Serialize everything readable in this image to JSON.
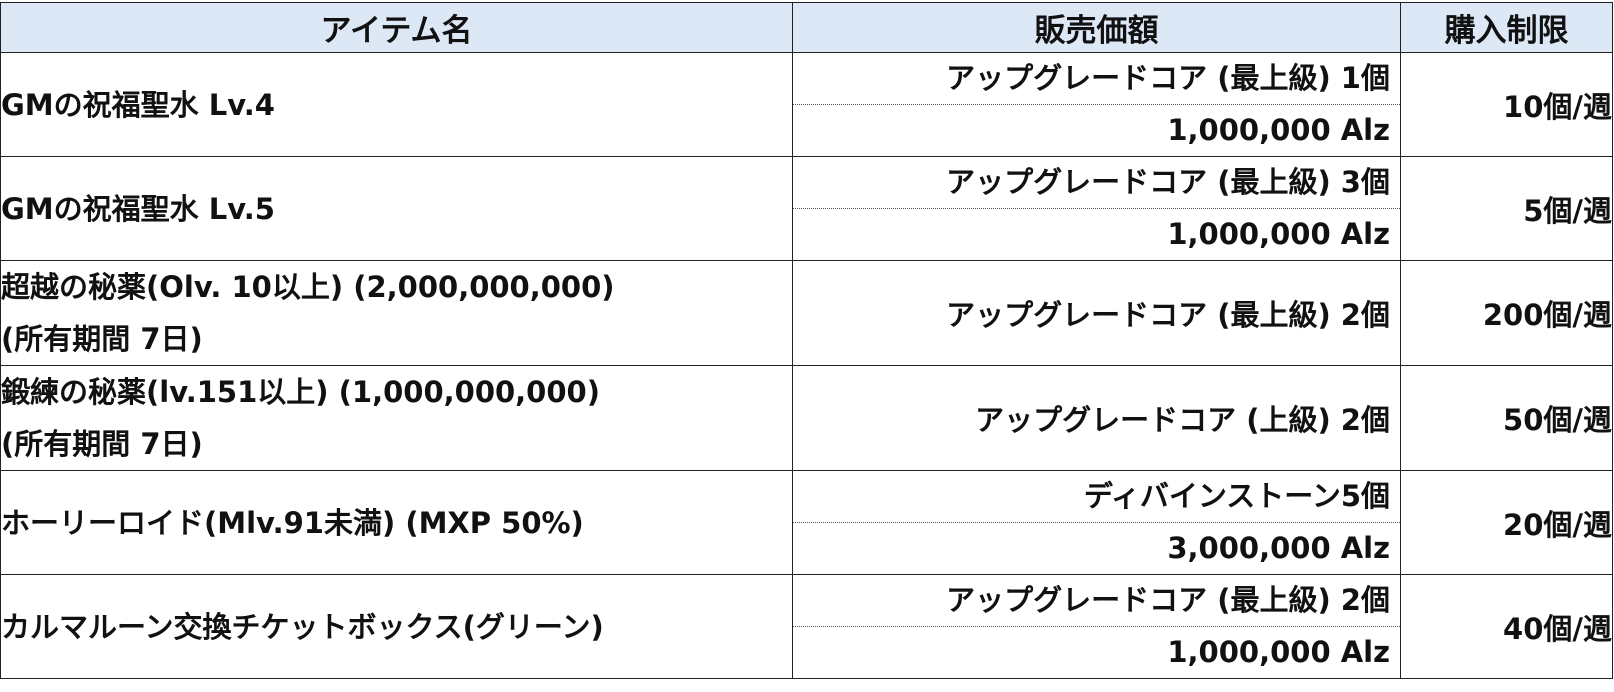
{
  "header": {
    "item_name": "アイテム名",
    "price": "販売価額",
    "limit": "購入制限"
  },
  "rows": [
    {
      "name_line1": "GMの祝福聖水 Lv.4",
      "name_line2": "",
      "price_lines": [
        "アップグレードコア (最上級) 1個",
        "1,000,000 Alz"
      ],
      "limit": "10個/週"
    },
    {
      "name_line1": "GMの祝福聖水 Lv.5",
      "name_line2": "",
      "price_lines": [
        "アップグレードコア (最上級) 3個",
        "1,000,000 Alz"
      ],
      "limit": "5個/週"
    },
    {
      "name_line1": "超越の秘薬(Olv. 10以上) (2,000,000,000)",
      "name_line2": "(所有期間 7日)",
      "price_lines": [
        "アップグレードコア (最上級) 2個"
      ],
      "limit": "200個/週"
    },
    {
      "name_line1": "鍛練の秘薬(lv.151以上) (1,000,000,000)",
      "name_line2": "(所有期間 7日)",
      "price_lines": [
        "アップグレードコア (上級) 2個"
      ],
      "limit": "50個/週"
    },
    {
      "name_line1": "ホーリーロイド(Mlv.91未満) (MXP 50%)",
      "name_line2": "",
      "price_lines": [
        "ディバインストーン5個",
        "3,000,000 Alz"
      ],
      "limit": "20個/週"
    },
    {
      "name_line1": "カルマルーン交換チケットボックス(グリーン)",
      "name_line2": "",
      "price_lines": [
        "アップグレードコア (最上級) 2個",
        "1,000,000 Alz"
      ],
      "limit": "40個/週"
    }
  ]
}
